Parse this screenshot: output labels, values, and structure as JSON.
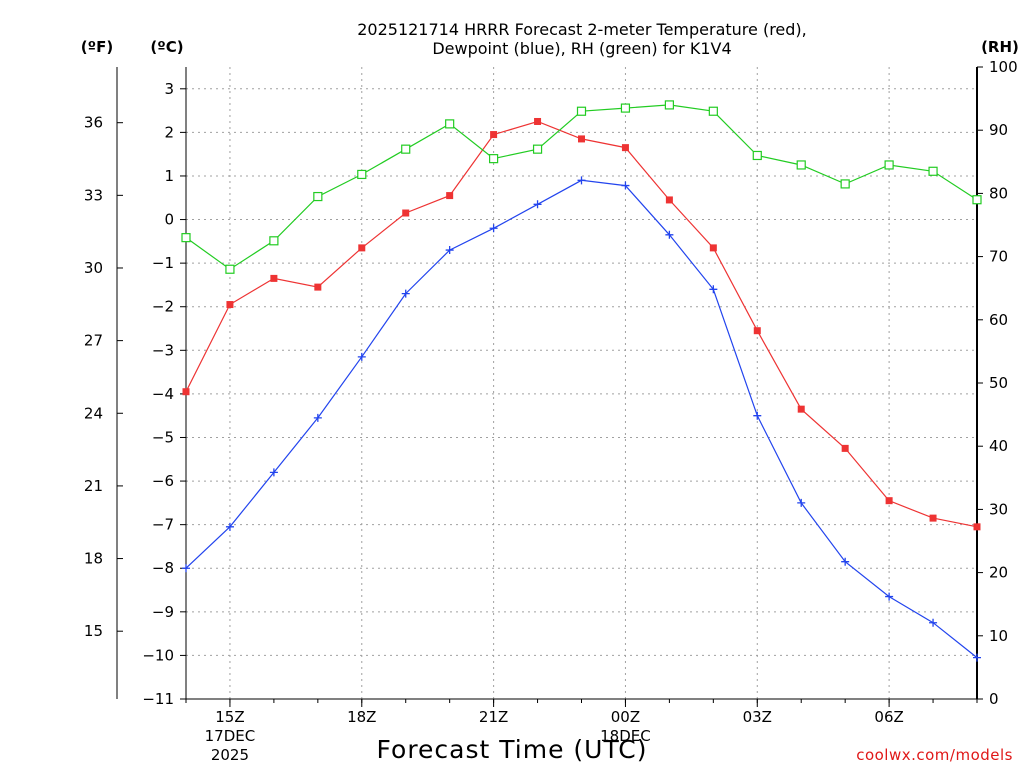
{
  "chart_data": {
    "type": "line",
    "title_line1": "2025121714 HRRR Forecast 2-meter Temperature (red),",
    "title_line2": "Dewpoint (blue), RH (green) for K1V4",
    "left_axis_f_label": "(ºF)",
    "left_axis_c_label": "(ºC)",
    "right_axis_label": "(RH)",
    "xlabel": "Forecast Time (UTC)",
    "credit": "coolwx.com/models",
    "x_hours": [
      14,
      15,
      16,
      17,
      18,
      19,
      20,
      21,
      22,
      23,
      24,
      25,
      26,
      27,
      28,
      29,
      30,
      31,
      32
    ],
    "x_range": [
      14,
      32
    ],
    "x_ticks": [
      {
        "hour": 15,
        "label": "15Z",
        "sub1": "17DEC",
        "sub2": "2025"
      },
      {
        "hour": 18,
        "label": "18Z",
        "sub1": "",
        "sub2": ""
      },
      {
        "hour": 21,
        "label": "21Z",
        "sub1": "",
        "sub2": ""
      },
      {
        "hour": 24,
        "label": "00Z",
        "sub1": "18DEC",
        "sub2": ""
      },
      {
        "hour": 27,
        "label": "03Z",
        "sub1": "",
        "sub2": ""
      },
      {
        "hour": 30,
        "label": "06Z",
        "sub1": "",
        "sub2": ""
      }
    ],
    "c_range": [
      -11,
      3.5
    ],
    "c_ticks": [
      3,
      2,
      1,
      0,
      -1,
      -2,
      -3,
      -4,
      -5,
      -6,
      -7,
      -8,
      -9,
      -10,
      -11
    ],
    "f_ticks": [
      36,
      33,
      30,
      27,
      24,
      21,
      18,
      15
    ],
    "rh_range": [
      0,
      100
    ],
    "rh_ticks": [
      100,
      90,
      80,
      70,
      60,
      50,
      40,
      30,
      20,
      10,
      0
    ],
    "series": [
      {
        "name": "Temperature",
        "unit": "C",
        "color": "#ee3333",
        "marker": "filled-square",
        "values": [
          -3.95,
          -1.95,
          -1.35,
          -1.55,
          -0.65,
          0.15,
          0.55,
          1.95,
          2.25,
          1.85,
          1.65,
          0.45,
          -0.65,
          -2.55,
          -4.35,
          -5.25,
          -6.45,
          -6.85,
          -7.05
        ]
      },
      {
        "name": "Dewpoint",
        "unit": "C",
        "color": "#2244ee",
        "marker": "plus",
        "values": [
          -8.0,
          -7.05,
          -5.8,
          -4.55,
          -3.15,
          -1.7,
          -0.7,
          -0.2,
          0.35,
          0.9,
          0.78,
          -0.35,
          -1.6,
          -4.5,
          -6.5,
          -7.85,
          -8.65,
          -9.25,
          -10.05
        ]
      },
      {
        "name": "RH",
        "unit": "%",
        "color": "#22cc22",
        "marker": "open-square",
        "values": [
          73,
          68,
          72.5,
          79.5,
          83,
          87,
          91,
          85.5,
          87,
          93,
          93.5,
          94,
          93,
          86,
          84.5,
          81.5,
          84.5,
          83.5,
          79
        ]
      }
    ]
  }
}
